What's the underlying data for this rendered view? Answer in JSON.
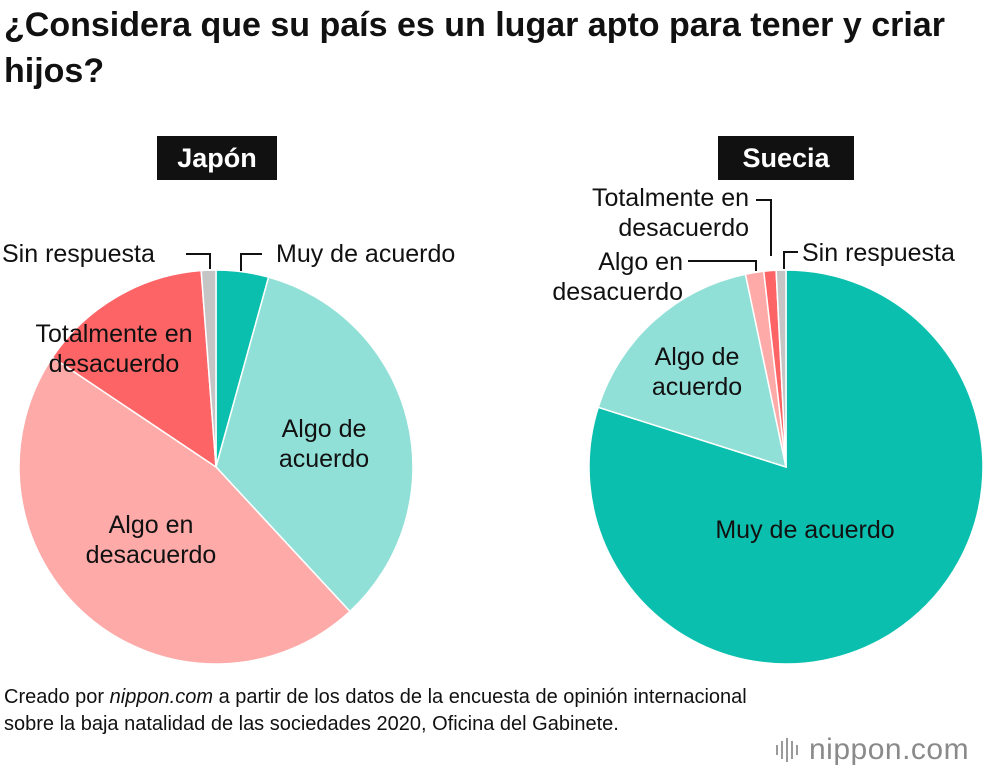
{
  "chart_data": [
    {
      "type": "pie",
      "title": "Japón",
      "slices": [
        {
          "label": "Muy de acuerdo",
          "value": 4.3,
          "color": "#0bbfae"
        },
        {
          "label": "Algo de acuerdo",
          "value": 33.8,
          "color": "#91e0d8"
        },
        {
          "label": "Algo en desacuerdo",
          "value": 46.3,
          "color": "#fdaaa8"
        },
        {
          "label": "Totalmente en desacuerdo",
          "value": 14.4,
          "color": "#fd6466"
        },
        {
          "label": "Sin respuesta",
          "value": 1.2,
          "color": "#c5c5c5"
        }
      ]
    },
    {
      "type": "pie",
      "title": "Suecia",
      "slices": [
        {
          "label": "Muy de acuerdo",
          "value": 79.9,
          "color": "#0bbfae"
        },
        {
          "label": "Algo de acuerdo",
          "value": 16.8,
          "color": "#91e0d8"
        },
        {
          "label": "Algo en desacuerdo",
          "value": 1.5,
          "color": "#fdaaa8"
        },
        {
          "label": "Totalmente en desacuerdo",
          "value": 1.0,
          "color": "#fd6466"
        },
        {
          "label": "Sin respuesta",
          "value": 0.8,
          "color": "#c5c5c5"
        }
      ]
    }
  ],
  "page": {
    "title": "¿Considera que su país es un lugar apto para tener y criar hijos?",
    "source_prefix": "Creado por ",
    "source_site": "nippon.com",
    "source_rest": " a partir de los datos de la encuesta de opinión internacional sobre la baja natalidad de las sociedades 2020, Oficina del Gabinete.",
    "logo": "nippon.com"
  }
}
